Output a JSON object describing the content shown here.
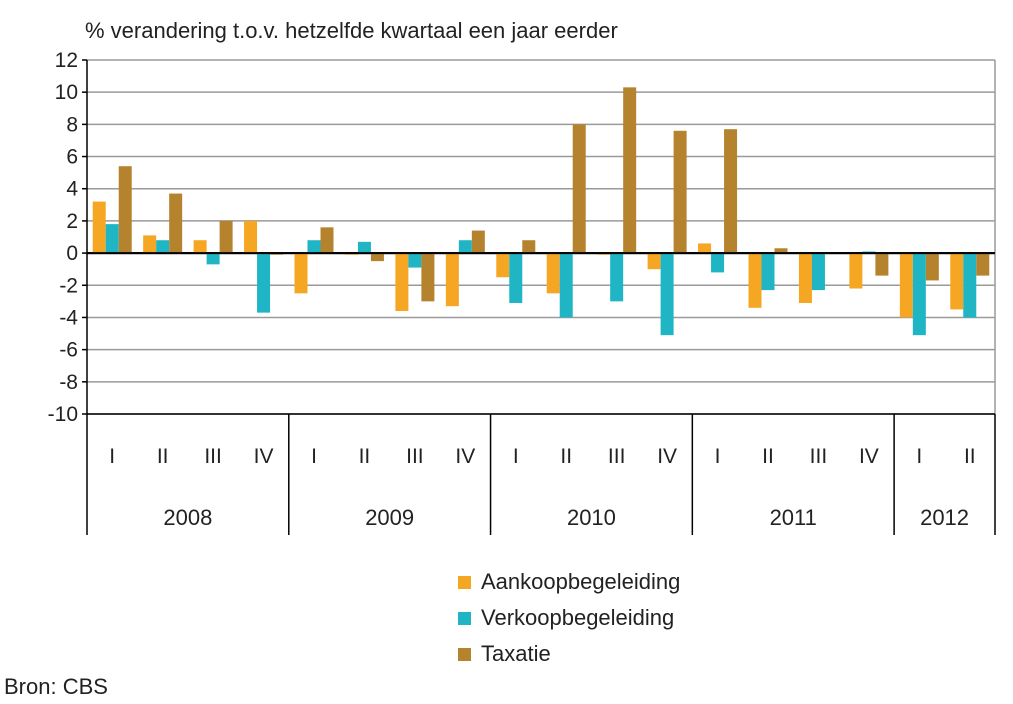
{
  "chart_data": {
    "type": "bar",
    "title": "% verandering t.o.v. hetzelfde kwartaal een jaar eerder",
    "xlabel": "",
    "ylabel": "",
    "ylim": [
      -10,
      12
    ],
    "yticks": [
      12,
      10,
      8,
      6,
      4,
      2,
      0,
      -2,
      -4,
      -6,
      -8,
      -10
    ],
    "grid": true,
    "legend_position": "bottom",
    "categories": [
      "I",
      "II",
      "III",
      "IV",
      "I",
      "II",
      "III",
      "IV",
      "I",
      "II",
      "III",
      "IV",
      "I",
      "II",
      "III",
      "IV",
      "I",
      "II"
    ],
    "year_groups": [
      {
        "label": "2008",
        "count": 4
      },
      {
        "label": "2009",
        "count": 4
      },
      {
        "label": "2010",
        "count": 4
      },
      {
        "label": "2011",
        "count": 4
      },
      {
        "label": "2012",
        "count": 2
      }
    ],
    "series": [
      {
        "name": "Aankoopbegeleiding",
        "color": "#f5a623",
        "values": [
          3.2,
          1.1,
          0.8,
          2.0,
          -2.5,
          -0.1,
          -3.6,
          -3.3,
          -1.5,
          -2.5,
          -0.1,
          -1.0,
          0.6,
          -3.4,
          -3.1,
          -2.2,
          -4.0,
          -3.5
        ]
      },
      {
        "name": "Verkoopbegeleiding",
        "color": "#1fb5c4",
        "values": [
          1.8,
          0.8,
          -0.7,
          -3.7,
          0.8,
          0.7,
          -0.9,
          0.8,
          -3.1,
          -4.0,
          -3.0,
          -5.1,
          -1.2,
          -2.3,
          -2.3,
          0.1,
          -5.1,
          -4.0
        ]
      },
      {
        "name": "Taxatie",
        "color": "#b5832e",
        "values": [
          5.4,
          3.7,
          2.0,
          -0.1,
          1.6,
          -0.5,
          -3.0,
          1.4,
          0.8,
          8.0,
          10.3,
          7.6,
          7.7,
          0.3,
          0.0,
          -1.4,
          -1.7,
          -1.4
        ]
      }
    ]
  },
  "source": "Bron: CBS"
}
